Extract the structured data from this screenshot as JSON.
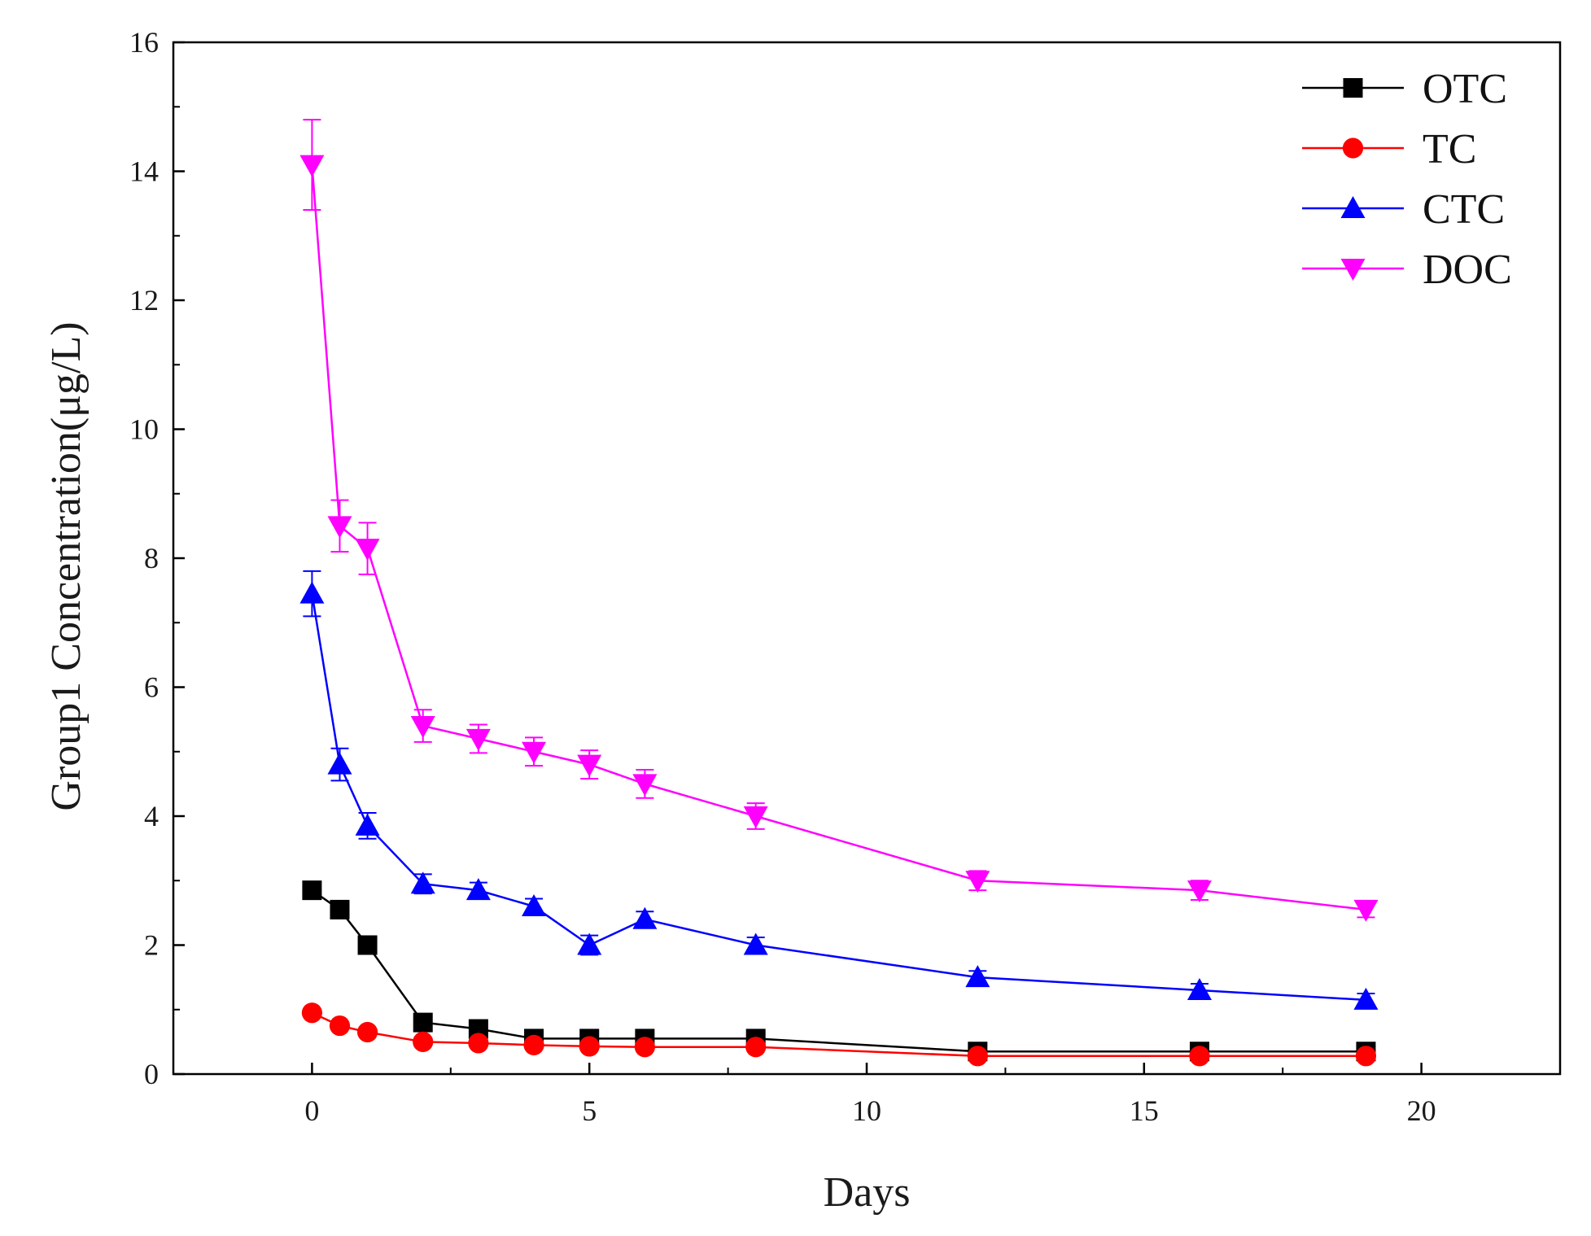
{
  "chart_data": {
    "type": "line",
    "title": "",
    "xlabel": "Days",
    "ylabel": "Group1  Concentration(μg/L)",
    "xlim": [
      -2.5,
      22.5
    ],
    "ylim": [
      0,
      16
    ],
    "xticks": [
      0,
      5,
      10,
      15,
      20
    ],
    "yticks": [
      0,
      2,
      4,
      6,
      8,
      10,
      12,
      14,
      16
    ],
    "grid": false,
    "legend_position": "top-right",
    "x": [
      0,
      0.5,
      1,
      2,
      3,
      4,
      5,
      6,
      8,
      12,
      16,
      19
    ],
    "series": [
      {
        "name": "OTC",
        "color": "#000000",
        "marker": "square",
        "values": [
          2.85,
          2.55,
          2.0,
          0.8,
          0.7,
          0.55,
          0.55,
          0.55,
          0.55,
          0.35,
          0.35,
          0.35
        ],
        "errors": [
          0.08,
          0.08,
          0.08,
          0.06,
          0.05,
          0.05,
          0.05,
          0.05,
          0.05,
          0.04,
          0.04,
          0.04
        ]
      },
      {
        "name": "TC",
        "color": "#ff0000",
        "marker": "circle",
        "values": [
          0.95,
          0.75,
          0.65,
          0.5,
          0.48,
          0.45,
          0.43,
          0.42,
          0.42,
          0.28,
          0.28,
          0.28
        ],
        "errors": [
          0.05,
          0.05,
          0.05,
          0.04,
          0.04,
          0.04,
          0.04,
          0.04,
          0.04,
          0.03,
          0.03,
          0.03
        ]
      },
      {
        "name": "CTC",
        "color": "#0000ff",
        "marker": "triangle-up",
        "values": [
          7.45,
          4.8,
          3.85,
          2.95,
          2.85,
          2.6,
          2.0,
          2.4,
          2.0,
          1.5,
          1.3,
          1.15
        ],
        "errors": [
          0.35,
          0.25,
          0.2,
          0.15,
          0.12,
          0.12,
          0.15,
          0.12,
          0.12,
          0.1,
          0.1,
          0.1
        ]
      },
      {
        "name": "DOC",
        "color": "#ff00ff",
        "marker": "triangle-down",
        "values": [
          14.1,
          8.5,
          8.15,
          5.4,
          5.2,
          5.0,
          4.8,
          4.5,
          4.0,
          3.0,
          2.85,
          2.55
        ],
        "errors": [
          0.7,
          0.4,
          0.4,
          0.25,
          0.22,
          0.22,
          0.22,
          0.22,
          0.2,
          0.15,
          0.15,
          0.12
        ]
      }
    ]
  }
}
